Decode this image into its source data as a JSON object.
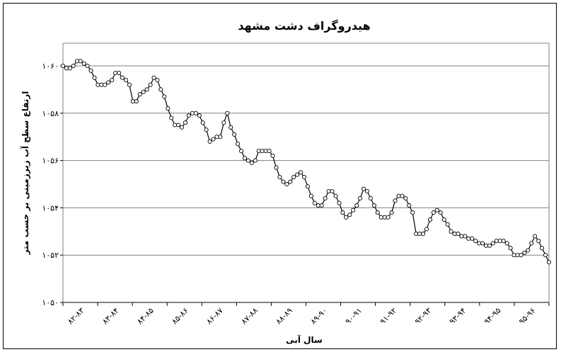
{
  "chart_data": {
    "type": "line",
    "title": "هیدروگراف دشت مشهد",
    "xlabel": "سال آبی",
    "ylabel": "ارتفاع سطح آب زیرزمینی بر حسب متر",
    "ylim": [
      1050,
      1061
    ],
    "yticks": [
      1050,
      1052,
      1054,
      1056,
      1058,
      1060
    ],
    "ytick_labels": [
      "۱۰۵۰",
      "۱۰۵۲",
      "۱۰۵۴",
      "۱۰۵۶",
      "۱۰۵۸",
      "۱۰۶۰"
    ],
    "xticks": [
      "۸۲-۸۳",
      "۸۳-۸۴",
      "۸۴-۸۵",
      "۸۵-۸۶",
      "۸۶-۸۷",
      "۸۷-۸۸",
      "۸۸-۸۹",
      "۸۹-۹۰",
      "۹۰-۹۱",
      "۹۱-۹۲",
      "۹۲-۹۳",
      "۹۳-۹۴",
      "۹۴-۹۵",
      "۹۵-۹۶"
    ],
    "grid": true,
    "legend": "none",
    "marker": "circle",
    "series": [
      {
        "values": [
          1060.0,
          1059.9,
          1059.9,
          1060.0,
          1060.2,
          1060.2,
          1060.1,
          1060.0,
          1059.8,
          1059.5,
          1059.2,
          1059.2,
          1059.2,
          1059.3,
          1059.4,
          1059.7,
          1059.7,
          1059.5,
          1059.4,
          1059.2,
          1058.5,
          1058.5,
          1058.8,
          1058.9,
          1059.0,
          1059.2,
          1059.5,
          1059.4,
          1059.0,
          1058.7,
          1058.2,
          1057.8,
          1057.5,
          1057.5,
          1057.4,
          1057.6,
          1057.9,
          1058.0,
          1058.0,
          1057.9,
          1057.6,
          1057.3,
          1056.8,
          1056.9,
          1057.0,
          1057.0,
          1057.6,
          1058.0,
          1057.4,
          1057.1,
          1056.7,
          1056.4,
          1056.1,
          1056.0,
          1055.9,
          1056.0,
          1056.4,
          1056.4,
          1056.4,
          1056.4,
          1056.2,
          1055.7,
          1055.3,
          1055.1,
          1055.0,
          1055.1,
          1055.3,
          1055.4,
          1055.5,
          1055.3,
          1054.9,
          1054.5,
          1054.2,
          1054.1,
          1054.1,
          1054.4,
          1054.7,
          1054.7,
          1054.5,
          1054.2,
          1053.8,
          1053.6,
          1053.7,
          1053.9,
          1054.1,
          1054.4,
          1054.8,
          1054.7,
          1054.4,
          1054.1,
          1053.8,
          1053.6,
          1053.6,
          1053.6,
          1053.8,
          1054.3,
          1054.5,
          1054.5,
          1054.4,
          1054.1,
          1053.8,
          1052.9,
          1052.9,
          1052.9,
          1053.1,
          1053.5,
          1053.8,
          1053.9,
          1053.8,
          1053.5,
          1053.3,
          1053.0,
          1052.9,
          1052.9,
          1052.8,
          1052.8,
          1052.7,
          1052.7,
          1052.6,
          1052.5,
          1052.5,
          1052.4,
          1052.4,
          1052.5,
          1052.6,
          1052.6,
          1052.6,
          1052.5,
          1052.3,
          1052.0,
          1052.0,
          1052.0,
          1052.1,
          1052.2,
          1052.5,
          1052.8,
          1052.6,
          1052.3,
          1052.0,
          1051.7
        ]
      }
    ]
  }
}
